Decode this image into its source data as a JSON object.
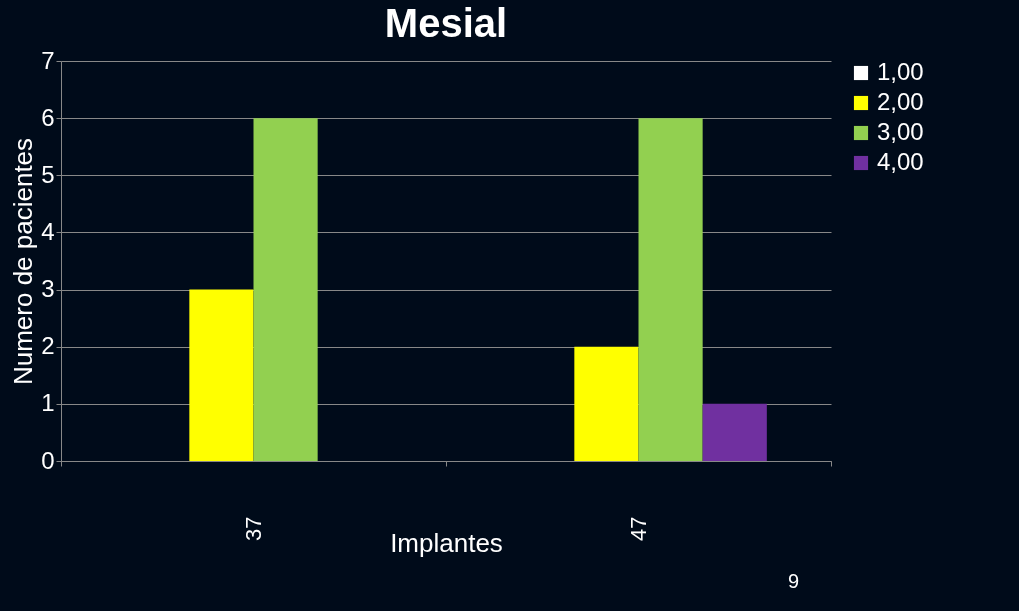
{
  "chart_data": {
    "type": "bar",
    "title": "Mesial",
    "xlabel": "Implantes",
    "ylabel": "Numero de pacientes",
    "categories": [
      "37",
      "47"
    ],
    "series": [
      {
        "name": "1,00",
        "color": "#ffffff",
        "values": [
          0,
          0
        ]
      },
      {
        "name": "2,00",
        "color": "#ffff00",
        "values": [
          3,
          2
        ]
      },
      {
        "name": "3,00",
        "color": "#92d050",
        "values": [
          6,
          6
        ]
      },
      {
        "name": "4,00",
        "color": "#7030a0",
        "values": [
          0,
          1
        ]
      }
    ],
    "ylim": [
      0,
      7
    ],
    "yticks": [
      0,
      1,
      2,
      3,
      4,
      5,
      6,
      7
    ],
    "grid": "y",
    "legend": "right",
    "annotations": [
      "9"
    ]
  }
}
